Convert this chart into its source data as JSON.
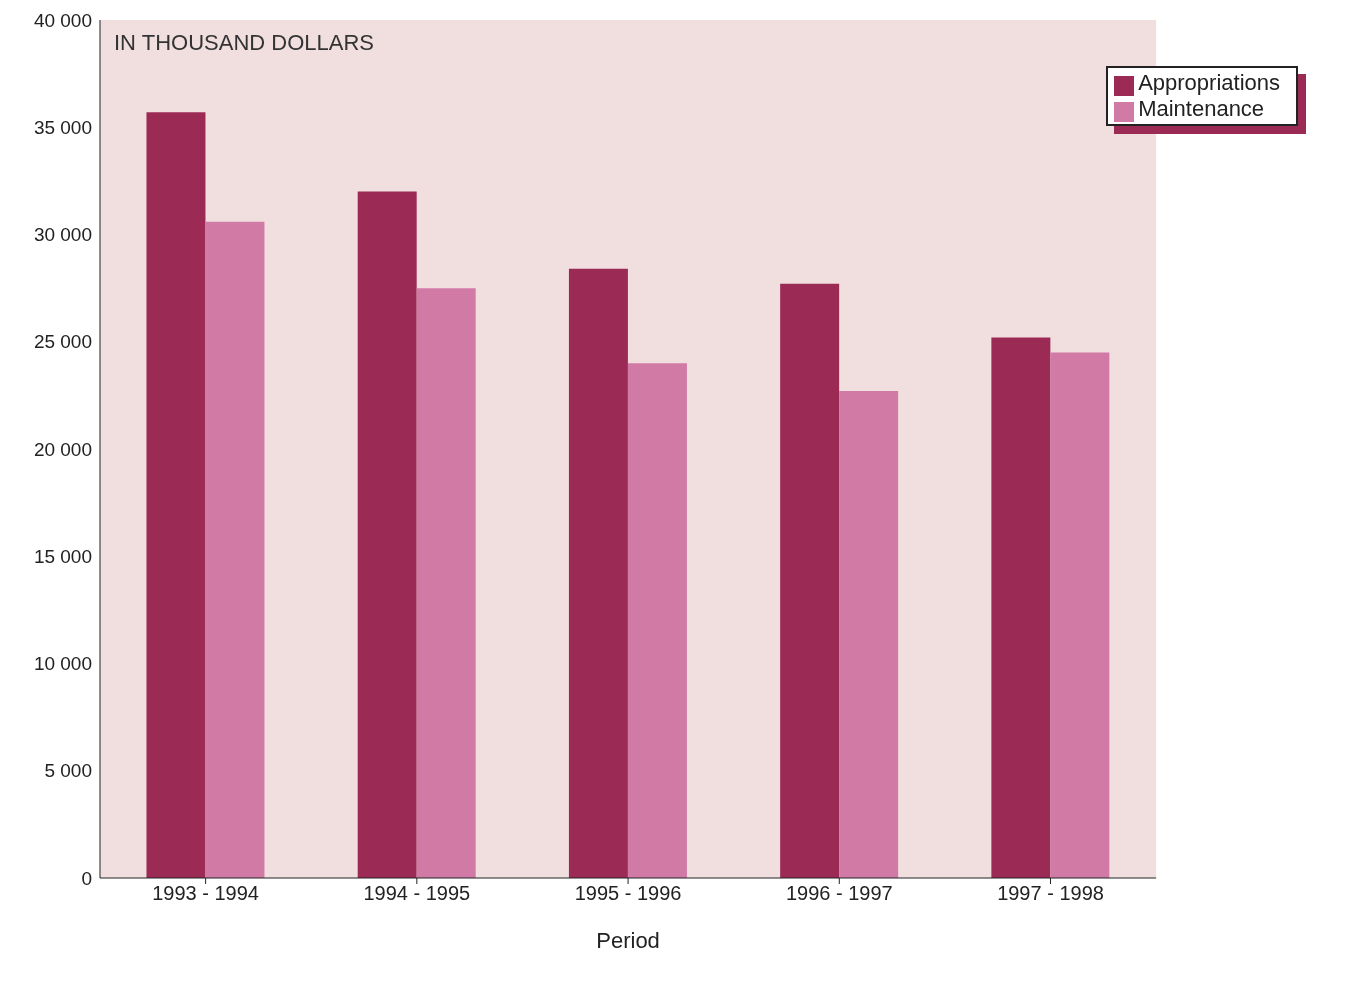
{
  "chart_data": {
    "type": "bar",
    "xlabel": "Period",
    "annotations": [
      "IN THOUSAND DOLLARS"
    ],
    "categories": [
      "1993 - 1994",
      "1994 - 1995",
      "1995 - 1996",
      "1996 - 1997",
      "1997 - 1998"
    ],
    "series": [
      {
        "name": "Appropriations",
        "color": "#9b2a55",
        "values": [
          35700,
          32000,
          28400,
          27700,
          25200
        ]
      },
      {
        "name": "Maintenance",
        "color": "#d17aa6",
        "values": [
          30600,
          27500,
          24000,
          22700,
          24500
        ]
      }
    ],
    "ylim": [
      0,
      40000
    ],
    "yticks": [
      0,
      {
        "value": 5000,
        "label": "5 000"
      },
      {
        "value": 10000,
        "label": "10 000"
      },
      {
        "value": 15000,
        "label": "15 000"
      },
      {
        "value": 20000,
        "label": "20 000"
      },
      {
        "value": 25000,
        "label": "25 000"
      },
      {
        "value": 30000,
        "label": "30 000"
      },
      {
        "value": 35000,
        "label": "35 000"
      },
      {
        "value": 40000,
        "label": "40 000"
      }
    ],
    "grid": false,
    "legend": "top right"
  }
}
